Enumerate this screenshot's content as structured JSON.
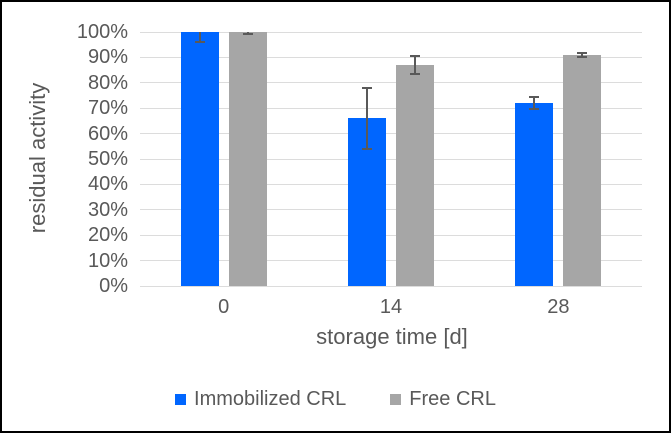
{
  "chart_data": {
    "type": "bar",
    "title": "",
    "ylabel": "residual activity",
    "xlabel": "storage time [d]",
    "categories": [
      "0",
      "14",
      "28"
    ],
    "series": [
      {
        "name": "Immobilized CRL",
        "color": "#0066FF",
        "values": [
          100,
          66,
          72
        ],
        "error_bars": [
          4,
          12,
          2.5
        ]
      },
      {
        "name": "Free CRL",
        "color": "#A6A6A6",
        "values": [
          100,
          87,
          91
        ],
        "error_bars": [
          0.7,
          3.5,
          0.8
        ]
      }
    ],
    "ylim": [
      0,
      100
    ],
    "yticks": [
      {
        "value": 0,
        "label": "0%"
      },
      {
        "value": 10,
        "label": "10%"
      },
      {
        "value": 20,
        "label": "20%"
      },
      {
        "value": 30,
        "label": "30%"
      },
      {
        "value": 40,
        "label": "40%"
      },
      {
        "value": 50,
        "label": "50%"
      },
      {
        "value": 60,
        "label": "60%"
      },
      {
        "value": 70,
        "label": "70%"
      },
      {
        "value": 80,
        "label": "80%"
      },
      {
        "value": 90,
        "label": "90%"
      },
      {
        "value": 100,
        "label": "100%"
      }
    ],
    "grid": true,
    "legend_position": "bottom",
    "colors": {
      "text": "#595959",
      "gridline": "#DCDCDC",
      "error_bar": "#595959",
      "background": "#FFFFFF",
      "frame_border": "#000000"
    }
  }
}
